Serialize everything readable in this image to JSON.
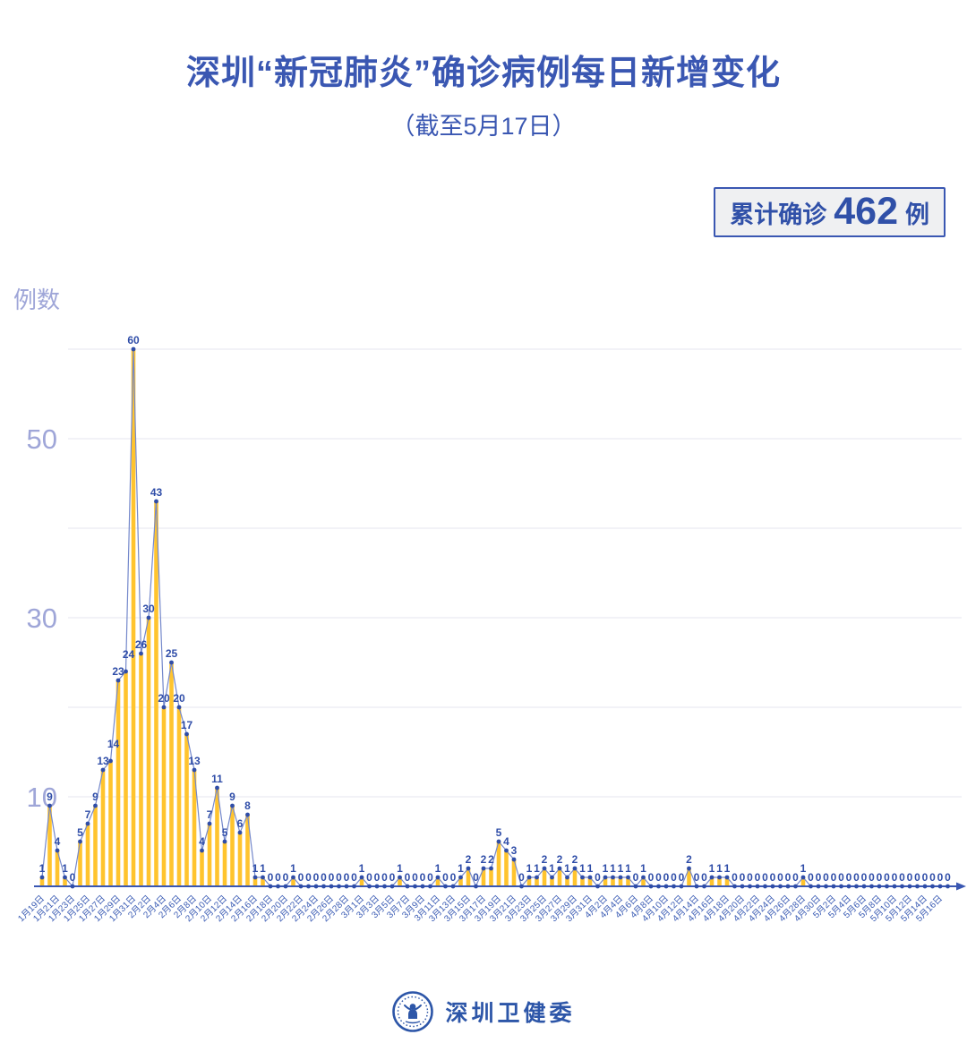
{
  "header": {
    "title": "深圳“新冠肺炎”确诊病例每日新增变化",
    "subtitle": "（截至5月17日）"
  },
  "badge": {
    "prefix": "累计确诊",
    "value": "462",
    "suffix": "例"
  },
  "chart_data": {
    "type": "bar",
    "title": "深圳“新冠肺炎”确诊病例每日新增变化",
    "subtitle": "（截至5月17日）",
    "ylabel": "例数",
    "ylim": [
      0,
      62
    ],
    "ytick_labels": [
      10,
      30,
      50
    ],
    "gridline_values": [
      10,
      20,
      30,
      40,
      50,
      60
    ],
    "x_tick_every": 2,
    "x_tick_labels": [
      "1月19日",
      "1月21日",
      "1月23日",
      "1月25日",
      "1月27日",
      "1月29日",
      "1月31日",
      "2月2日",
      "2月4日",
      "2月6日",
      "2月8日",
      "2月10日",
      "2月12日",
      "2月14日",
      "2月16日",
      "2月18日",
      "2月20日",
      "2月22日",
      "2月24日",
      "2月26日",
      "2月28日",
      "3月1日",
      "3月3日",
      "3月5日",
      "3月7日",
      "3月9日",
      "3月11日",
      "3月13日",
      "3月15日",
      "3月17日",
      "3月19日",
      "3月21日",
      "3月23日",
      "3月25日",
      "3月27日",
      "3月29日",
      "3月31日",
      "4月2日",
      "4月4日",
      "4月6日",
      "4月8日",
      "4月10日",
      "4月12日",
      "4月14日",
      "4月16日",
      "4月18日",
      "4月20日",
      "4月22日",
      "4月24日",
      "4月26日",
      "4月28日",
      "4月30日",
      "5月2日",
      "5月4日",
      "5月6日",
      "5月8日",
      "5月10日",
      "5月12日",
      "5月14日",
      "5月16日"
    ],
    "values": [
      1,
      9,
      4,
      1,
      0,
      5,
      7,
      9,
      13,
      14,
      23,
      24,
      60,
      26,
      30,
      43,
      20,
      25,
      20,
      17,
      13,
      4,
      7,
      11,
      5,
      9,
      6,
      8,
      1,
      1,
      0,
      0,
      0,
      1,
      0,
      0,
      0,
      0,
      0,
      0,
      0,
      0,
      1,
      0,
      0,
      0,
      0,
      1,
      0,
      0,
      0,
      0,
      1,
      0,
      0,
      1,
      2,
      0,
      2,
      2,
      5,
      4,
      3,
      0,
      1,
      1,
      2,
      1,
      2,
      1,
      2,
      1,
      1,
      0,
      1,
      1,
      1,
      1,
      0,
      1,
      0,
      0,
      0,
      0,
      0,
      2,
      0,
      0,
      1,
      1,
      1,
      0,
      0,
      0,
      0,
      0,
      0,
      0,
      0,
      0,
      1,
      0,
      0,
      0,
      0,
      0,
      0,
      0,
      0,
      0,
      0,
      0,
      0,
      0,
      0,
      0,
      0,
      0,
      0,
      0
    ],
    "legend": "none",
    "grid": "horizontal",
    "colors": {
      "bar": "#FFC42E",
      "line": "#7488CB",
      "dot": "#2F4DA8",
      "point_label": "#2F4DA8",
      "axis": "#3A57B2",
      "x_tick": "#3B5CB4",
      "y_tick": "#9FA6D8",
      "grid": "#EAEAF2"
    }
  },
  "footer": {
    "org": "深圳卫健委",
    "emblem": "shenzhen-health-commission-emblem"
  }
}
